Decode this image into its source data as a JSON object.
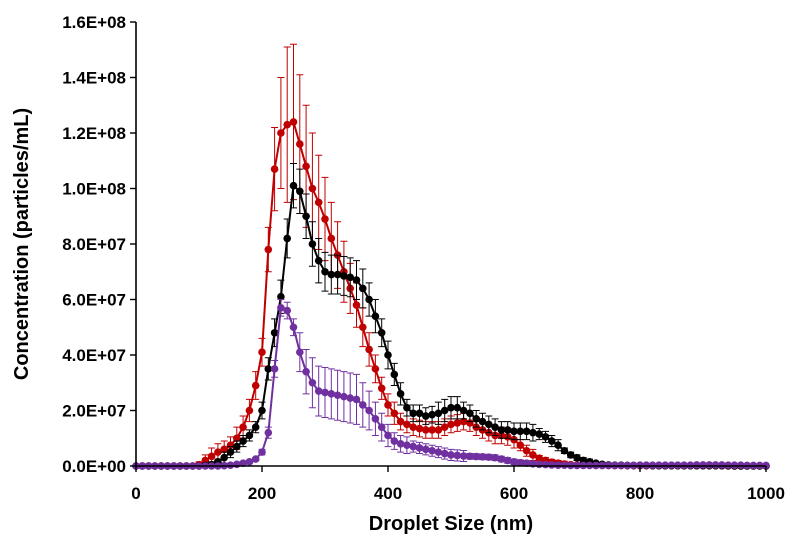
{
  "chart_data": {
    "type": "scatter",
    "title": "",
    "xlabel": "Droplet Size (nm)",
    "ylabel": "Concentration (particles/mL)",
    "xlim": [
      0,
      1000
    ],
    "ylim": [
      0,
      160000000
    ],
    "x_ticks": [
      0,
      200,
      400,
      600,
      800,
      1000
    ],
    "x_tick_labels": [
      "0",
      "200",
      "400",
      "600",
      "800",
      "1000"
    ],
    "y_ticks": [
      0,
      20000000,
      40000000,
      60000000,
      80000000,
      100000000,
      120000000,
      140000000,
      160000000
    ],
    "y_tick_labels": [
      "0.0E+00",
      "2.0E+07",
      "4.0E+07",
      "6.0E+07",
      "8.0E+07",
      "1.0E+08",
      "1.2E+08",
      "1.4E+08",
      "1.6E+08"
    ],
    "grid": false,
    "legend": "none",
    "markers": "circles connected by lines, with vertical error bars",
    "x": [
      0,
      10,
      20,
      30,
      40,
      50,
      60,
      70,
      80,
      90,
      100,
      110,
      120,
      130,
      140,
      150,
      160,
      170,
      180,
      190,
      200,
      210,
      220,
      230,
      240,
      250,
      260,
      270,
      280,
      290,
      300,
      310,
      320,
      330,
      340,
      350,
      360,
      370,
      380,
      390,
      400,
      410,
      420,
      430,
      440,
      450,
      460,
      470,
      480,
      490,
      500,
      510,
      520,
      530,
      540,
      550,
      560,
      570,
      580,
      590,
      600,
      610,
      620,
      630,
      640,
      650,
      660,
      670,
      680,
      690,
      700,
      710,
      720,
      730,
      740,
      750,
      760,
      770,
      780,
      790,
      800,
      810,
      820,
      830,
      840,
      850,
      860,
      870,
      880,
      890,
      900,
      910,
      920,
      930,
      940,
      950,
      960,
      970,
      980,
      990,
      1000
    ],
    "series": [
      {
        "color": "#c00000",
        "y_m": [
          0,
          0,
          0,
          0,
          0,
          0,
          0,
          0,
          0,
          0,
          0.5,
          2,
          3.5,
          5,
          6,
          7.5,
          10,
          14,
          20,
          29,
          41,
          78,
          107,
          120,
          123,
          124,
          116,
          108,
          100,
          95,
          89,
          82,
          76,
          70,
          64,
          58,
          50,
          42,
          35,
          28,
          22,
          19,
          16,
          15,
          14,
          13.5,
          13,
          13,
          13,
          14,
          15,
          15.5,
          16,
          15.5,
          14,
          13,
          12,
          11,
          11,
          10.5,
          9.5,
          7.5,
          5.5,
          4,
          2.8,
          2,
          1.4,
          1,
          0.7,
          0.5,
          0.4,
          0.3,
          0.3,
          0.2,
          0.2,
          0.2,
          0.15,
          0.15,
          0.1,
          0.1,
          0.1,
          0.1,
          0.1,
          0.1,
          0.1,
          0.1,
          0.1,
          0.1,
          0.1,
          0.1,
          0.1,
          0.1,
          0.1,
          0.1,
          0,
          0,
          0,
          0,
          0,
          0,
          0
        ],
        "err_m": [
          0,
          0,
          0,
          0,
          0,
          0,
          0,
          0,
          0,
          0,
          1,
          2,
          3,
          3,
          3,
          3,
          4,
          4,
          4,
          5,
          5,
          8,
          15,
          20,
          28,
          28,
          25,
          22,
          20,
          17,
          15,
          13,
          12,
          11,
          9,
          8,
          7,
          6,
          5,
          4,
          4,
          4,
          3,
          3,
          3,
          3,
          3,
          3,
          3,
          3,
          3,
          3,
          3,
          3,
          3,
          3,
          3,
          3,
          3,
          3,
          3,
          2,
          2,
          2,
          1,
          1,
          1,
          1,
          1,
          0,
          0,
          0,
          0,
          0,
          0,
          0,
          0,
          0,
          0,
          0,
          0,
          0,
          0,
          0,
          0,
          0,
          0,
          0,
          0,
          0,
          0,
          0,
          0,
          0,
          0,
          0,
          0,
          0,
          0,
          0,
          0
        ]
      },
      {
        "color": "#000000",
        "y_m": [
          0,
          0,
          0,
          0,
          0,
          0,
          0,
          0,
          0,
          0,
          0,
          0.2,
          0.5,
          1.5,
          3,
          5,
          7,
          9,
          11,
          14,
          20,
          35,
          48,
          61,
          82,
          101,
          99,
          90,
          80,
          74,
          70,
          69,
          69,
          68.5,
          68,
          67,
          64,
          60,
          54,
          48,
          40,
          33,
          26,
          21,
          19,
          19,
          18,
          18.5,
          19,
          20,
          21,
          21,
          20,
          19,
          17,
          16,
          15,
          14,
          13,
          13,
          12.5,
          12.5,
          12.5,
          12,
          11.5,
          10.5,
          9,
          7.5,
          5.5,
          4,
          3,
          2,
          1.5,
          1,
          0.6,
          0.4,
          0.3,
          0.3,
          0.2,
          0.2,
          0.2,
          0.2,
          0.1,
          0.1,
          0.1,
          0.1,
          0.1,
          0.1,
          0.1,
          0.1,
          0.1,
          0.1,
          0.1,
          0.1,
          0.1,
          0,
          0,
          0,
          0,
          0,
          0
        ],
        "err_m": [
          0,
          0,
          0,
          0,
          0,
          0,
          0,
          0,
          0,
          0,
          0,
          0.5,
          1,
          1,
          2,
          2,
          2,
          2,
          2,
          2,
          3,
          4,
          5,
          6,
          7,
          8,
          8,
          8,
          8,
          8,
          7,
          7,
          7,
          7,
          7,
          7,
          7,
          6,
          6,
          5,
          5,
          4,
          4,
          3,
          3,
          3,
          3,
          3,
          4,
          4,
          4,
          4,
          3,
          3,
          3,
          3,
          3,
          3,
          3,
          3,
          3,
          3,
          3,
          3,
          2,
          2,
          2,
          2,
          1,
          1,
          1,
          1,
          1,
          0,
          0,
          0,
          0,
          0,
          0,
          0,
          0,
          0,
          0,
          0,
          0,
          0,
          0,
          0,
          0,
          0,
          0,
          0,
          0,
          0,
          0,
          0,
          0,
          0,
          0,
          0,
          0
        ]
      },
      {
        "color": "#7030a0",
        "y_m": [
          0,
          0,
          0,
          0,
          0,
          0,
          0,
          0,
          0,
          0,
          0,
          0,
          0,
          0,
          0.1,
          0.3,
          0.6,
          1,
          1.5,
          2.5,
          5,
          12,
          35,
          57,
          56,
          50,
          41,
          34,
          30,
          27,
          26.5,
          26,
          25.5,
          25,
          24.5,
          24,
          22,
          20,
          17,
          14,
          11,
          9,
          8,
          7.5,
          7,
          6.5,
          6,
          5.5,
          5,
          4.5,
          4,
          3.8,
          3.6,
          3.5,
          3.4,
          3.3,
          3.2,
          3,
          2.5,
          2,
          1.5,
          1.2,
          1,
          0.8,
          0.6,
          0.5,
          0.4,
          0.3,
          0.3,
          0.2,
          0.2,
          0.2,
          0.2,
          0.2,
          0.2,
          0.2,
          0.2,
          0.2,
          0.2,
          0.2,
          0.3,
          0.3,
          0.3,
          0.3,
          0.3,
          0.3,
          0.3,
          0.3,
          0.3,
          0.4,
          0.4,
          0.4,
          0.4,
          0.4,
          0.3,
          0.3,
          0.3,
          0.2,
          0.2,
          0.2,
          0.2
        ],
        "err_m": [
          0,
          0,
          0,
          0,
          0,
          0,
          0,
          0,
          0,
          0,
          0,
          0,
          0,
          0,
          0,
          0,
          0,
          0.5,
          0.5,
          0.5,
          1,
          2,
          3,
          3,
          3,
          3,
          7,
          8,
          9,
          9,
          9,
          9,
          9,
          9,
          9,
          9,
          8,
          7,
          6,
          5,
          4,
          3,
          3,
          3,
          2,
          2,
          2,
          2,
          2,
          2,
          2,
          2,
          2,
          1,
          1,
          1,
          1,
          1,
          1,
          1,
          1,
          1,
          1,
          0.5,
          0.5,
          0.5,
          0,
          0,
          0,
          0,
          0,
          0,
          0,
          0,
          0,
          0,
          0,
          0,
          0,
          0,
          0,
          0,
          0,
          0,
          0,
          0,
          0,
          0,
          0,
          0,
          0,
          0,
          0,
          0,
          0,
          0,
          0,
          0,
          0,
          0,
          0
        ]
      }
    ]
  }
}
